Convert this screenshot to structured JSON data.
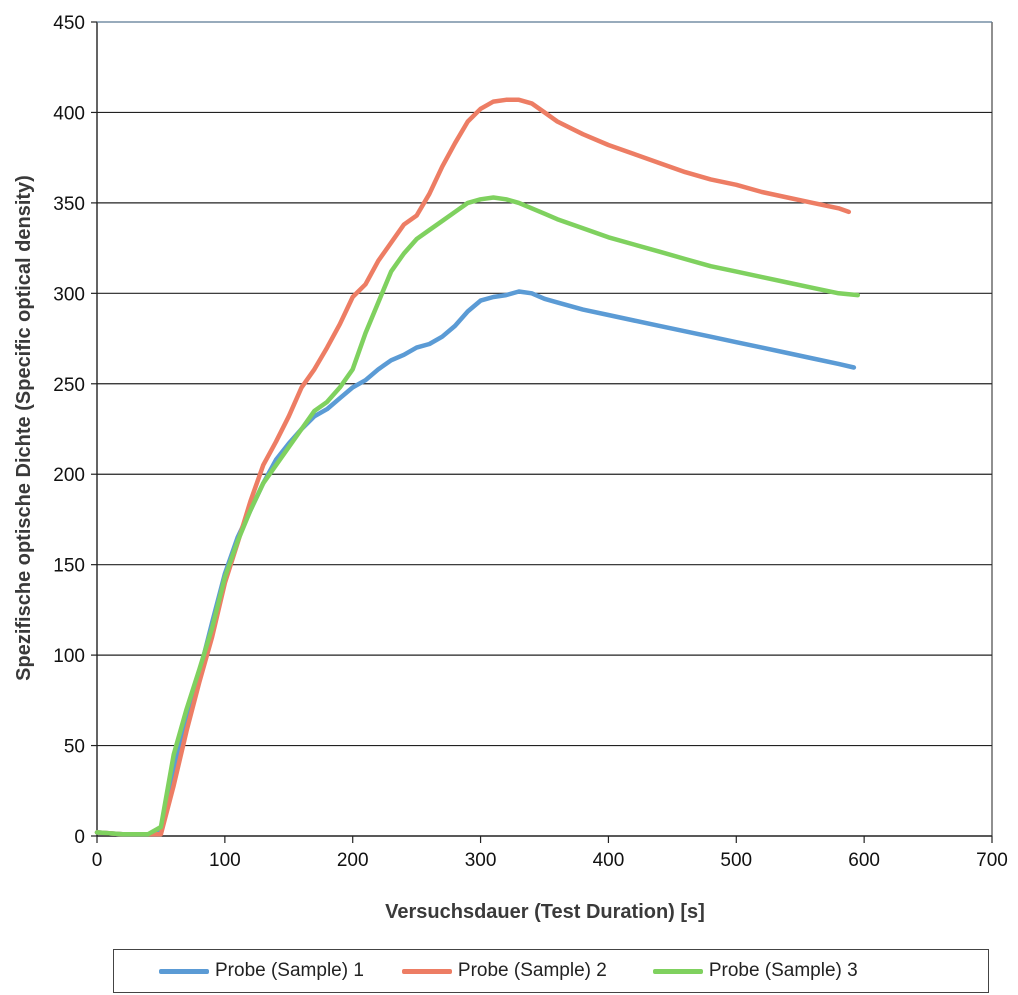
{
  "chart_data": {
    "type": "line",
    "title": "",
    "xlabel": "Versuchsdauer (Test Duration) [s]",
    "ylabel": "Spezifische optische Dichte (Specific optical density)",
    "xlim": [
      0,
      700
    ],
    "ylim": [
      0,
      450
    ],
    "xticks": [
      "0",
      "100",
      "200",
      "300",
      "400",
      "500",
      "600",
      "700"
    ],
    "yticks": [
      "0",
      "50",
      "100",
      "150",
      "200",
      "250",
      "300",
      "350",
      "400",
      "450"
    ],
    "grid": "horizontal",
    "legend_position": "bottom",
    "series": [
      {
        "name": "Probe (Sample) 1",
        "color": "#5b9bd5",
        "points": [
          [
            0,
            2
          ],
          [
            20,
            1
          ],
          [
            40,
            1
          ],
          [
            50,
            2
          ],
          [
            60,
            35
          ],
          [
            70,
            65
          ],
          [
            80,
            90
          ],
          [
            90,
            118
          ],
          [
            100,
            145
          ],
          [
            110,
            165
          ],
          [
            120,
            180
          ],
          [
            130,
            195
          ],
          [
            140,
            208
          ],
          [
            150,
            217
          ],
          [
            160,
            225
          ],
          [
            170,
            232
          ],
          [
            180,
            236
          ],
          [
            190,
            242
          ],
          [
            200,
            248
          ],
          [
            210,
            252
          ],
          [
            220,
            258
          ],
          [
            230,
            263
          ],
          [
            240,
            266
          ],
          [
            250,
            270
          ],
          [
            260,
            272
          ],
          [
            270,
            276
          ],
          [
            280,
            282
          ],
          [
            290,
            290
          ],
          [
            300,
            296
          ],
          [
            310,
            298
          ],
          [
            320,
            299
          ],
          [
            330,
            301
          ],
          [
            340,
            300
          ],
          [
            350,
            297
          ],
          [
            360,
            295
          ],
          [
            380,
            291
          ],
          [
            400,
            288
          ],
          [
            420,
            285
          ],
          [
            440,
            282
          ],
          [
            460,
            279
          ],
          [
            480,
            276
          ],
          [
            500,
            273
          ],
          [
            520,
            270
          ],
          [
            540,
            267
          ],
          [
            560,
            264
          ],
          [
            580,
            261
          ],
          [
            592,
            259
          ]
        ]
      },
      {
        "name": "Probe (Sample) 2",
        "color": "#ed7d64",
        "points": [
          [
            0,
            2
          ],
          [
            20,
            1
          ],
          [
            40,
            1
          ],
          [
            50,
            1
          ],
          [
            60,
            28
          ],
          [
            70,
            58
          ],
          [
            80,
            85
          ],
          [
            90,
            110
          ],
          [
            100,
            140
          ],
          [
            110,
            162
          ],
          [
            120,
            185
          ],
          [
            130,
            205
          ],
          [
            140,
            218
          ],
          [
            150,
            232
          ],
          [
            160,
            248
          ],
          [
            170,
            258
          ],
          [
            180,
            270
          ],
          [
            190,
            283
          ],
          [
            200,
            298
          ],
          [
            210,
            305
          ],
          [
            220,
            318
          ],
          [
            230,
            328
          ],
          [
            240,
            338
          ],
          [
            250,
            343
          ],
          [
            260,
            355
          ],
          [
            270,
            370
          ],
          [
            280,
            383
          ],
          [
            290,
            395
          ],
          [
            300,
            402
          ],
          [
            310,
            406
          ],
          [
            320,
            407
          ],
          [
            330,
            407
          ],
          [
            340,
            405
          ],
          [
            350,
            400
          ],
          [
            360,
            395
          ],
          [
            380,
            388
          ],
          [
            400,
            382
          ],
          [
            420,
            377
          ],
          [
            440,
            372
          ],
          [
            460,
            367
          ],
          [
            480,
            363
          ],
          [
            500,
            360
          ],
          [
            520,
            356
          ],
          [
            540,
            353
          ],
          [
            560,
            350
          ],
          [
            580,
            347
          ],
          [
            588,
            345
          ]
        ]
      },
      {
        "name": "Probe (Sample) 3",
        "color": "#7fd15f",
        "points": [
          [
            0,
            2
          ],
          [
            20,
            1
          ],
          [
            40,
            1
          ],
          [
            50,
            5
          ],
          [
            60,
            45
          ],
          [
            70,
            70
          ],
          [
            80,
            92
          ],
          [
            90,
            115
          ],
          [
            100,
            143
          ],
          [
            110,
            163
          ],
          [
            120,
            180
          ],
          [
            130,
            195
          ],
          [
            140,
            205
          ],
          [
            150,
            215
          ],
          [
            160,
            225
          ],
          [
            170,
            235
          ],
          [
            180,
            240
          ],
          [
            190,
            248
          ],
          [
            200,
            258
          ],
          [
            210,
            278
          ],
          [
            220,
            295
          ],
          [
            230,
            312
          ],
          [
            240,
            322
          ],
          [
            250,
            330
          ],
          [
            260,
            335
          ],
          [
            270,
            340
          ],
          [
            280,
            345
          ],
          [
            290,
            350
          ],
          [
            300,
            352
          ],
          [
            310,
            353
          ],
          [
            320,
            352
          ],
          [
            330,
            350
          ],
          [
            340,
            347
          ],
          [
            350,
            344
          ],
          [
            360,
            341
          ],
          [
            380,
            336
          ],
          [
            400,
            331
          ],
          [
            420,
            327
          ],
          [
            440,
            323
          ],
          [
            460,
            319
          ],
          [
            480,
            315
          ],
          [
            500,
            312
          ],
          [
            520,
            309
          ],
          [
            540,
            306
          ],
          [
            560,
            303
          ],
          [
            580,
            300
          ],
          [
            595,
            299
          ]
        ]
      }
    ]
  }
}
